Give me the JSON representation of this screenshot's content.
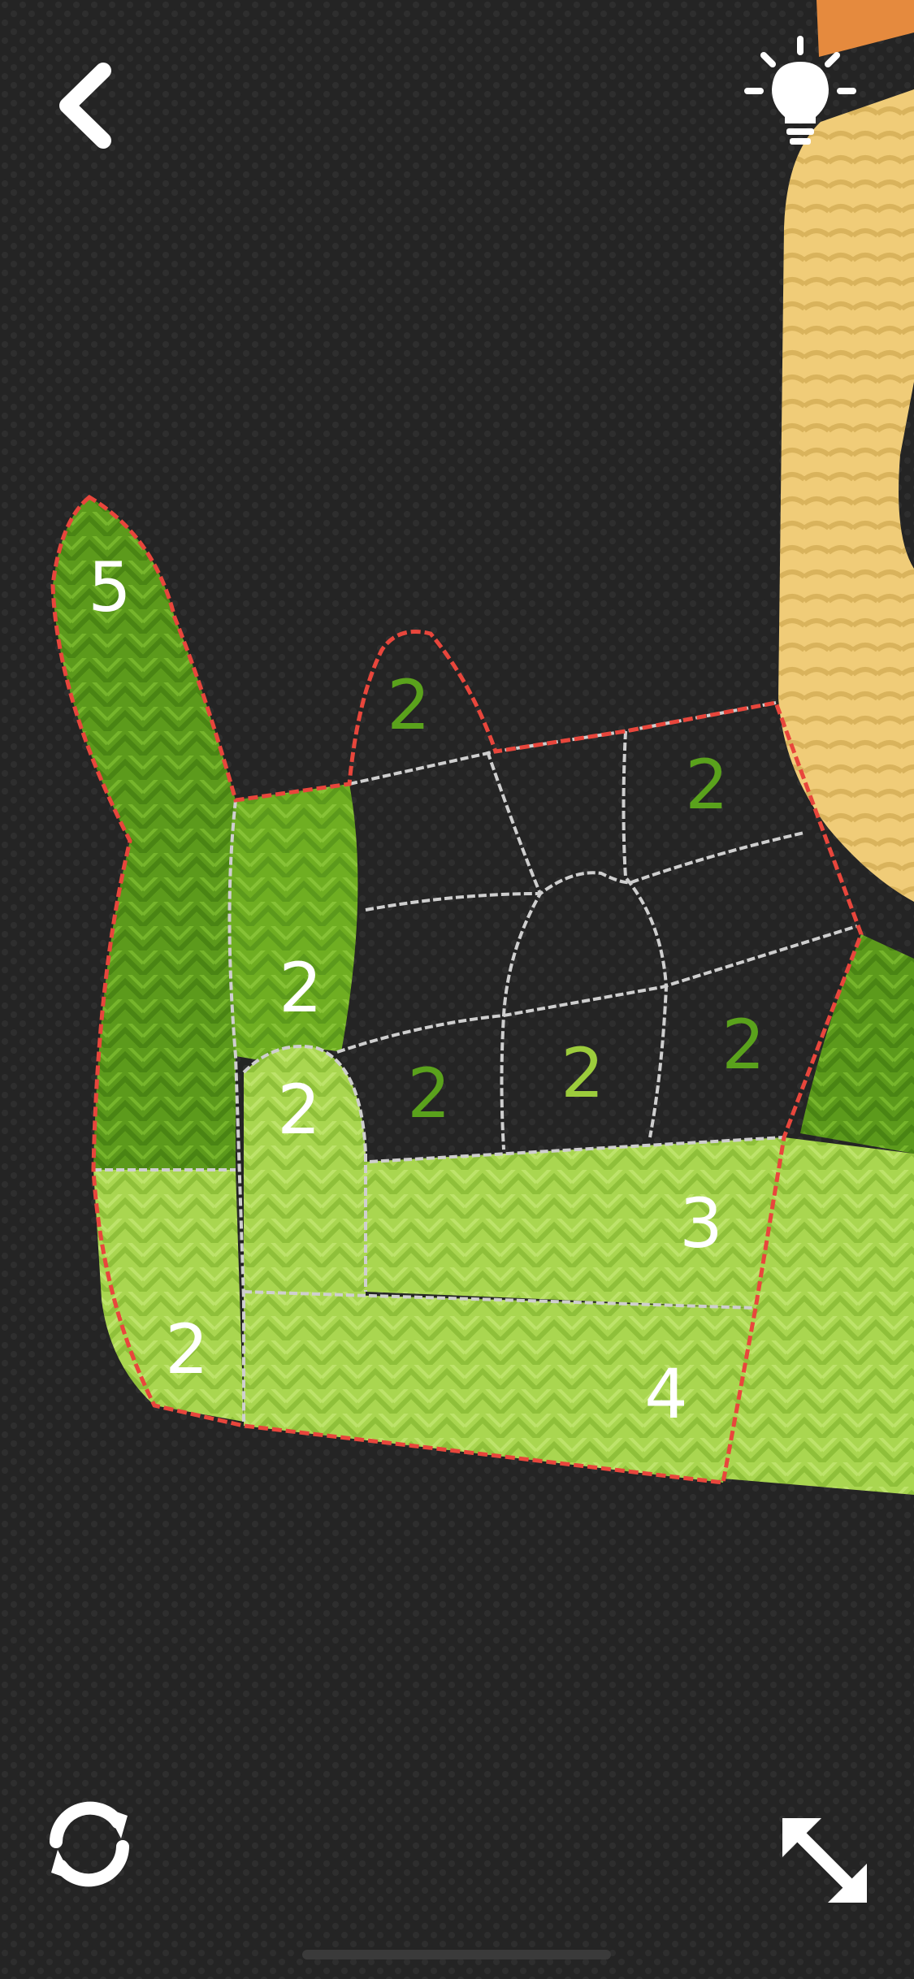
{
  "colors": {
    "background": "#242424",
    "darkGreen": "#5c9a1c",
    "midGreen": "#6fae22",
    "lightGreen": "#a9d650",
    "yellow": "#f0cc78",
    "orange": "#e58a3e",
    "outlineRed": "#e8463c",
    "seamWhite": "#cfcfcf",
    "numberWhite": "#ffffff",
    "numberGreen": "#5aa21c",
    "numberLightGreen": "#9ccc3c"
  },
  "icons": {
    "back": "back-chevron-icon",
    "hint": "lightbulb-icon",
    "rotate": "rotate-arrows-icon",
    "expand": "expand-arrows-icon"
  },
  "regions": [
    {
      "id": "finger-left",
      "number": "5",
      "filled": true
    },
    {
      "id": "palm-left-upper",
      "number": "2",
      "filled": true
    },
    {
      "id": "thumb-bump",
      "number": "2",
      "filled": true
    },
    {
      "id": "finger-middle-top",
      "number": "2",
      "filled": false
    },
    {
      "id": "right-top-cell",
      "number": "2",
      "filled": false
    },
    {
      "id": "center-left-cell",
      "number": "2",
      "filled": false
    },
    {
      "id": "center-cell",
      "number": "2",
      "filled": false
    },
    {
      "id": "right-cell",
      "number": "2",
      "filled": false
    },
    {
      "id": "wrist-left",
      "number": "2",
      "filled": true
    },
    {
      "id": "wrist-band-upper",
      "number": "3",
      "filled": true
    },
    {
      "id": "wrist-band-lower",
      "number": "4",
      "filled": true
    }
  ]
}
